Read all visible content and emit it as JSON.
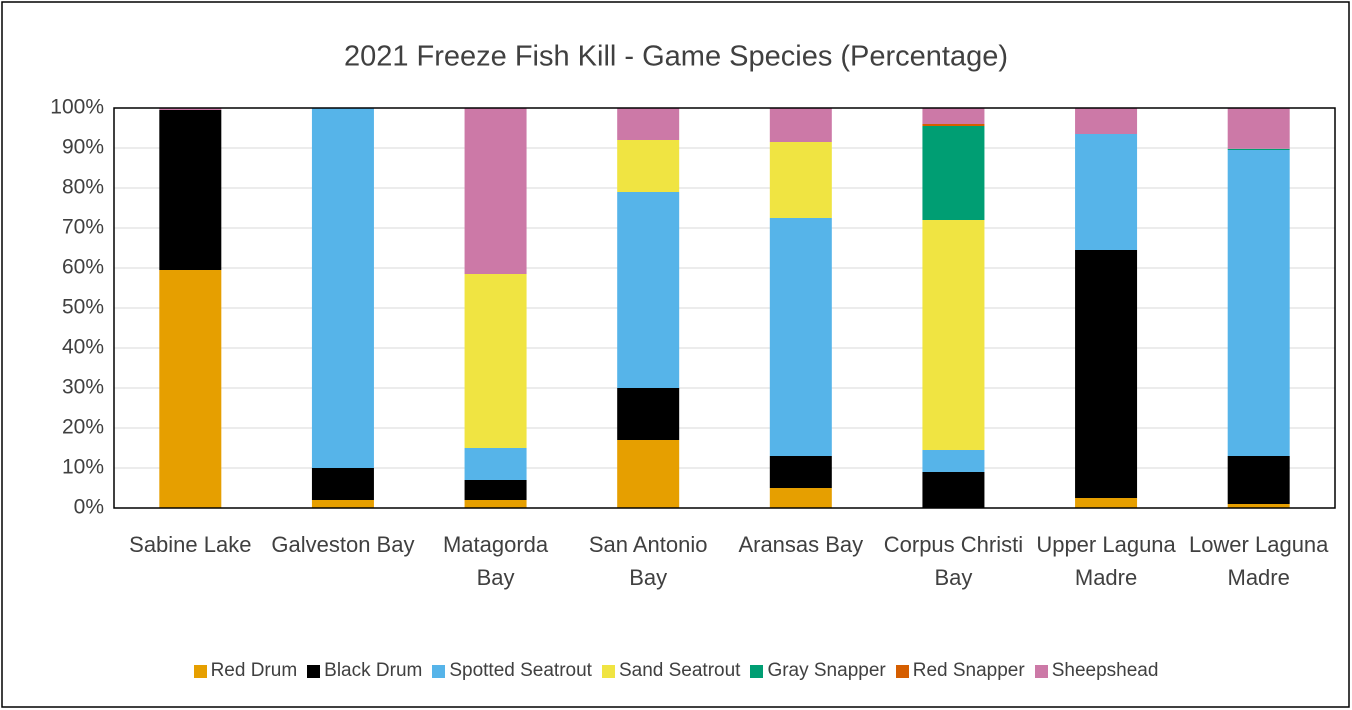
{
  "chart_data": {
    "type": "stacked_bar",
    "title": "2021 Freeze Fish Kill - Game Species (Percentage)",
    "categories": [
      "Sabine Lake",
      "Galveston Bay",
      "Matagorda Bay",
      "San Antonio Bay",
      "Aransas Bay",
      "Corpus Christi Bay",
      "Upper Laguna Madre",
      "Lower Laguna Madre"
    ],
    "series": [
      {
        "name": "Red Drum",
        "color": "#e69f00",
        "values": [
          59.5,
          2,
          2,
          17,
          5,
          0,
          2.5,
          1
        ]
      },
      {
        "name": "Black Drum",
        "color": "#000000",
        "values": [
          40,
          8,
          5,
          13,
          8,
          9,
          62,
          12
        ]
      },
      {
        "name": "Spotted Seatrout",
        "color": "#56b4e9",
        "values": [
          0,
          90,
          8,
          49,
          59.5,
          5.5,
          29,
          76.5
        ]
      },
      {
        "name": "Sand Seatrout",
        "color": "#f0e442",
        "values": [
          0,
          0,
          43.5,
          13,
          19,
          57.5,
          0,
          0
        ]
      },
      {
        "name": "Gray Snapper",
        "color": "#009e73",
        "values": [
          0,
          0,
          0,
          0,
          0,
          23.5,
          0,
          0.3
        ]
      },
      {
        "name": "Red Snapper",
        "color": "#d55e00",
        "values": [
          0,
          0,
          0,
          0,
          0,
          0.5,
          0,
          0
        ]
      },
      {
        "name": "Sheepshead",
        "color": "#cc79a7",
        "values": [
          0.5,
          0,
          41.5,
          8,
          8.5,
          4,
          6.5,
          10.2
        ]
      }
    ],
    "ylim": [
      0,
      100
    ],
    "yticks": [
      {
        "value": 0,
        "label": "0%"
      },
      {
        "value": 10,
        "label": "10%"
      },
      {
        "value": 20,
        "label": "20%"
      },
      {
        "value": 30,
        "label": "30%"
      },
      {
        "value": 40,
        "label": "40%"
      },
      {
        "value": 50,
        "label": "50%"
      },
      {
        "value": 60,
        "label": "60%"
      },
      {
        "value": 70,
        "label": "70%"
      },
      {
        "value": 80,
        "label": "80%"
      },
      {
        "value": 90,
        "label": "90%"
      },
      {
        "value": 100,
        "label": "100%"
      }
    ],
    "grid": true,
    "legend": "bottom"
  }
}
